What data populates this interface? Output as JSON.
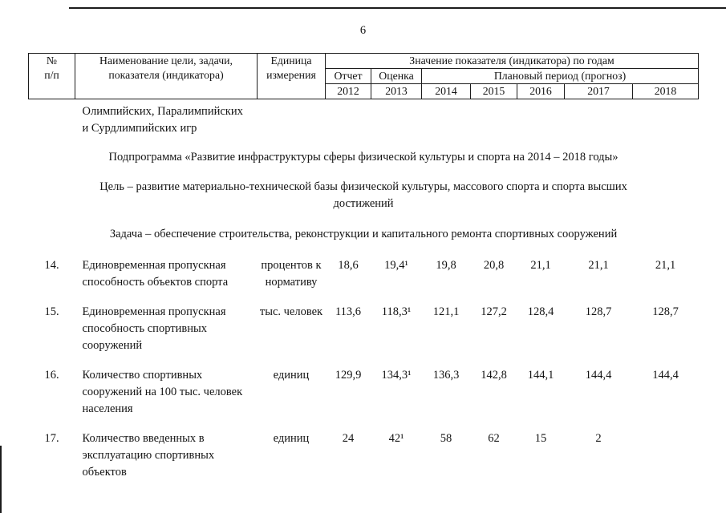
{
  "page": {
    "number": "6"
  },
  "table": {
    "header": {
      "col_num": "№\nп/п",
      "col_name": "Наименование цели, задачи,\nпоказателя (индикатора)",
      "col_unit": "Единица\nизмерения",
      "col_values": "Значение показателя (индикатора) по годам",
      "col_report": "Отчет",
      "col_estimate": "Оценка",
      "col_plan": "Плановый период (прогноз)",
      "years": [
        "2012",
        "2013",
        "2014",
        "2015",
        "2016",
        "2017",
        "2018"
      ]
    },
    "continuation": "Олимпийских, Паралимпийских\nи Сурдлимпийских игр",
    "subprogram": "Подпрограмма «Развитие инфраструктуры сферы физической культуры и спорта на 2014 – 2018 годы»",
    "goal": "Цель – развитие материально-технической базы физической культуры, массового спорта и спорта высших достижений",
    "task": "Задача – обеспечение строительства, реконструкции и капитального ремонта спортивных сооружений",
    "rows": [
      {
        "num": "14.",
        "name": "Единовременная пропускная способность объектов спорта",
        "unit": "процентов к нормативу",
        "values": [
          "18,6",
          "19,4¹",
          "19,8",
          "20,8",
          "21,1",
          "21,1",
          "21,1"
        ]
      },
      {
        "num": "15.",
        "name": "Единовременная пропускная способность спортивных сооружений",
        "unit": "тыс. человек",
        "values": [
          "113,6",
          "118,3¹",
          "121,1",
          "127,2",
          "128,4",
          "128,7",
          "128,7"
        ]
      },
      {
        "num": "16.",
        "name": "Количество спортивных сооружений на 100 тыс. человек населения",
        "unit": "единиц",
        "values": [
          "129,9",
          "134,3¹",
          "136,3",
          "142,8",
          "144,1",
          "144,4",
          "144,4"
        ]
      },
      {
        "num": "17.",
        "name": "Количество введенных в эксплуатацию спортивных объектов",
        "unit": "единиц",
        "values": [
          "24",
          "42¹",
          "58",
          "62",
          "15",
          "2",
          ""
        ]
      }
    ]
  }
}
